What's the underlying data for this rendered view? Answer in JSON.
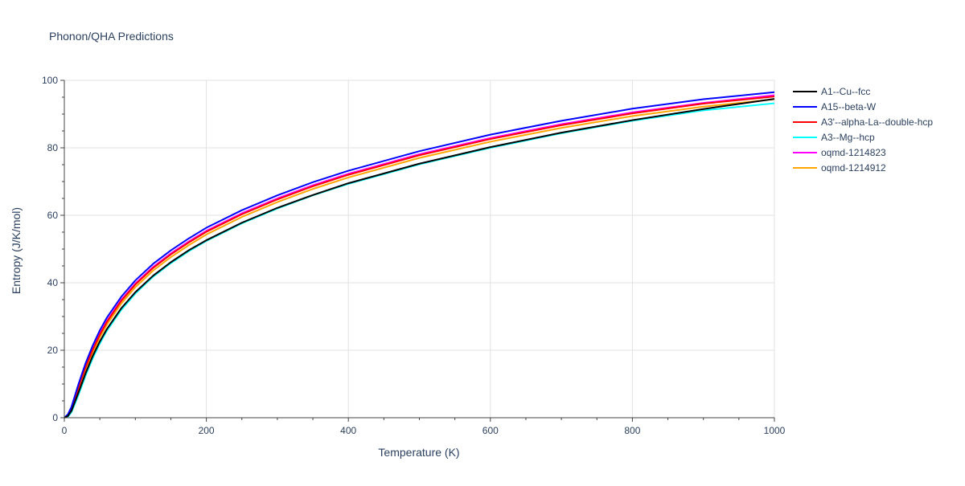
{
  "chart_data": {
    "type": "line",
    "title": "Phonon/QHA Predictions",
    "xlabel": "Temperature (K)",
    "ylabel": "Entropy (J/K/mol)",
    "xlim": [
      0,
      1000
    ],
    "ylim": [
      0,
      100
    ],
    "xticks": [
      0,
      200,
      400,
      600,
      800,
      1000
    ],
    "yticks": [
      0,
      20,
      40,
      60,
      80,
      100
    ],
    "grid": true,
    "legend_position": "right",
    "x": [
      0,
      5,
      10,
      20,
      30,
      40,
      50,
      60,
      80,
      100,
      125,
      150,
      175,
      200,
      250,
      300,
      350,
      400,
      500,
      600,
      700,
      800,
      900,
      1000
    ],
    "series": [
      {
        "name": "A1--Cu--fcc",
        "color": "#000000",
        "values": [
          0,
          0.5,
          2.0,
          7.5,
          13.2,
          18.3,
          22.6,
          26.3,
          32.4,
          37.2,
          42.1,
          46.1,
          49.6,
          52.6,
          57.8,
          62.2,
          66.0,
          69.5,
          75.3,
          80.2,
          84.5,
          88.2,
          91.5,
          94.5
        ]
      },
      {
        "name": "A15--beta-W",
        "color": "#0000ff",
        "values": [
          0,
          1.0,
          3.2,
          10.0,
          16.2,
          21.4,
          25.9,
          29.7,
          35.8,
          40.7,
          45.6,
          49.6,
          53.1,
          56.3,
          61.5,
          65.9,
          69.8,
          73.2,
          79.0,
          83.9,
          88.0,
          91.6,
          94.4,
          96.5
        ]
      },
      {
        "name": "A3'--alpha-La--double-hcp",
        "color": "#ff0000",
        "values": [
          0,
          0.7,
          2.6,
          9.0,
          15.0,
          20.1,
          24.6,
          28.4,
          34.6,
          39.5,
          44.4,
          48.4,
          51.9,
          55.1,
          60.3,
          64.7,
          68.6,
          72.0,
          77.8,
          82.6,
          86.7,
          90.2,
          93.1,
          95.2
        ]
      },
      {
        "name": "A3--Mg--hcp",
        "color": "#00ffff",
        "values": [
          0,
          0.3,
          1.6,
          6.8,
          12.5,
          17.6,
          22.0,
          25.8,
          31.9,
          36.8,
          41.8,
          45.8,
          49.3,
          52.4,
          57.6,
          62.0,
          65.9,
          69.3,
          75.1,
          80.0,
          84.3,
          88.0,
          91.1,
          93.2
        ]
      },
      {
        "name": "oqmd-1214823",
        "color": "#ff00ff",
        "values": [
          0,
          0.8,
          2.8,
          9.3,
          15.3,
          20.4,
          24.9,
          28.7,
          34.9,
          39.8,
          44.7,
          48.7,
          52.2,
          55.4,
          60.6,
          65.0,
          68.9,
          72.3,
          78.1,
          82.9,
          87.0,
          90.5,
          93.3,
          95.6
        ]
      },
      {
        "name": "oqmd-1214912",
        "color": "#ffa500",
        "values": [
          0,
          0.6,
          2.3,
          8.4,
          14.2,
          19.3,
          23.8,
          27.6,
          33.8,
          38.7,
          43.6,
          47.6,
          51.1,
          54.3,
          59.5,
          63.9,
          67.8,
          71.2,
          77.0,
          81.8,
          85.9,
          89.4,
          92.2,
          94.4
        ]
      }
    ]
  }
}
